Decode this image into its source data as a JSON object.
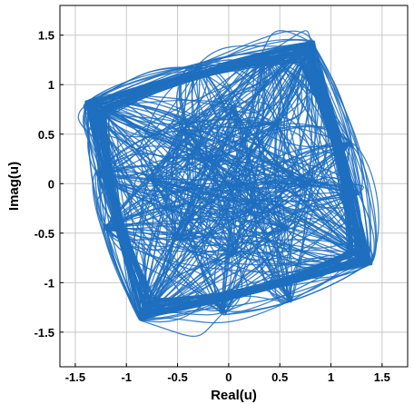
{
  "chart_data": {
    "type": "line",
    "title": "",
    "xlabel": "Real(u)",
    "ylabel": "Imag(u)",
    "xlim": [
      -1.65,
      1.75
    ],
    "ylim": [
      -1.85,
      1.8
    ],
    "xticks": [
      -1.5,
      -1,
      -0.5,
      0,
      0.5,
      1,
      1.5
    ],
    "yticks": [
      -1.5,
      -1,
      -0.5,
      0,
      0.5,
      1,
      1.5
    ],
    "xtick_labels": [
      "-1.5",
      "-1",
      "-0.5",
      "0",
      "0.5",
      "1",
      "1.5"
    ],
    "ytick_labels": [
      "-1.5",
      "-1",
      "-0.5",
      "0",
      "0.5",
      "1",
      "1.5"
    ],
    "grid": true,
    "line_color": "#1f6fbf",
    "description_points": {
      "corners": [
        [
          0.82,
          1.42
        ],
        [
          1.38,
          -0.8
        ],
        [
          -0.85,
          -1.36
        ],
        [
          -1.38,
          0.82
        ]
      ],
      "edge_points": [
        [
          -0.3,
          1.17
        ],
        [
          0.35,
          1.3
        ],
        [
          1.18,
          0.4
        ],
        [
          1.25,
          -0.1
        ],
        [
          0.6,
          -1.18
        ],
        [
          -0.05,
          -1.3
        ],
        [
          -1.2,
          -0.45
        ],
        [
          -1.28,
          0.1
        ]
      ],
      "inner_points": [
        [
          0.0,
          0.0
        ],
        [
          -0.45,
          0.55
        ],
        [
          0.45,
          0.6
        ],
        [
          0.55,
          -0.45
        ],
        [
          -0.5,
          -0.55
        ],
        [
          0.05,
          0.75
        ],
        [
          0.05,
          -0.7
        ],
        [
          -0.75,
          0.05
        ],
        [
          0.8,
          0.0
        ],
        [
          -0.2,
          0.25
        ],
        [
          0.25,
          -0.2
        ]
      ]
    }
  }
}
